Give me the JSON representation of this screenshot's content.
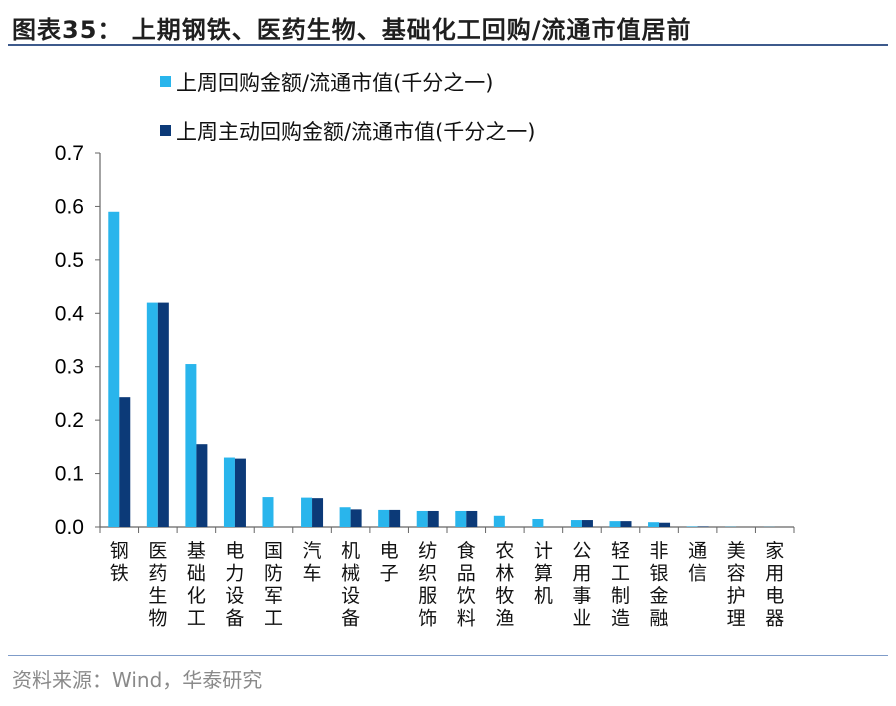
{
  "title": "图表35：  上期钢铁、医药生物、基础化工回购/流通市值居前",
  "source": "资料来源：Wind，华泰研究",
  "colors": {
    "series1": "#29b5ec",
    "series2": "#0c3a78",
    "axis": "#666666",
    "rule": "#3d5a8c"
  },
  "chart_data": {
    "type": "bar",
    "categories": [
      "钢铁",
      "医药生物",
      "基础化工",
      "电力设备",
      "国防军工",
      "汽车",
      "机械设备",
      "电子",
      "纺织服饰",
      "食品饮料",
      "农林牧渔",
      "计算机",
      "公用事业",
      "轻工制造",
      "非银金融",
      "通信",
      "美容护理",
      "家用电器"
    ],
    "series": [
      {
        "name": "上周回购金额/流通市值(千分之一)",
        "values": [
          0.59,
          0.42,
          0.305,
          0.13,
          0.056,
          0.055,
          0.037,
          0.032,
          0.03,
          0.03,
          0.021,
          0.015,
          0.013,
          0.011,
          0.009,
          0.001,
          0.0005,
          0.0003
        ]
      },
      {
        "name": "上周主动回购金额/流通市值(千分之一)",
        "values": [
          0.243,
          0.42,
          0.155,
          0.128,
          0.0,
          0.054,
          0.033,
          0.032,
          0.03,
          0.03,
          0.0,
          0.0,
          0.013,
          0.011,
          0.008,
          0.001,
          0.0,
          0.0
        ]
      }
    ],
    "yticks": [
      "0.0",
      "0.1",
      "0.2",
      "0.3",
      "0.4",
      "0.5",
      "0.6",
      "0.7"
    ],
    "ylim": [
      0,
      0.7
    ],
    "grid": false,
    "legend": "top-center"
  }
}
